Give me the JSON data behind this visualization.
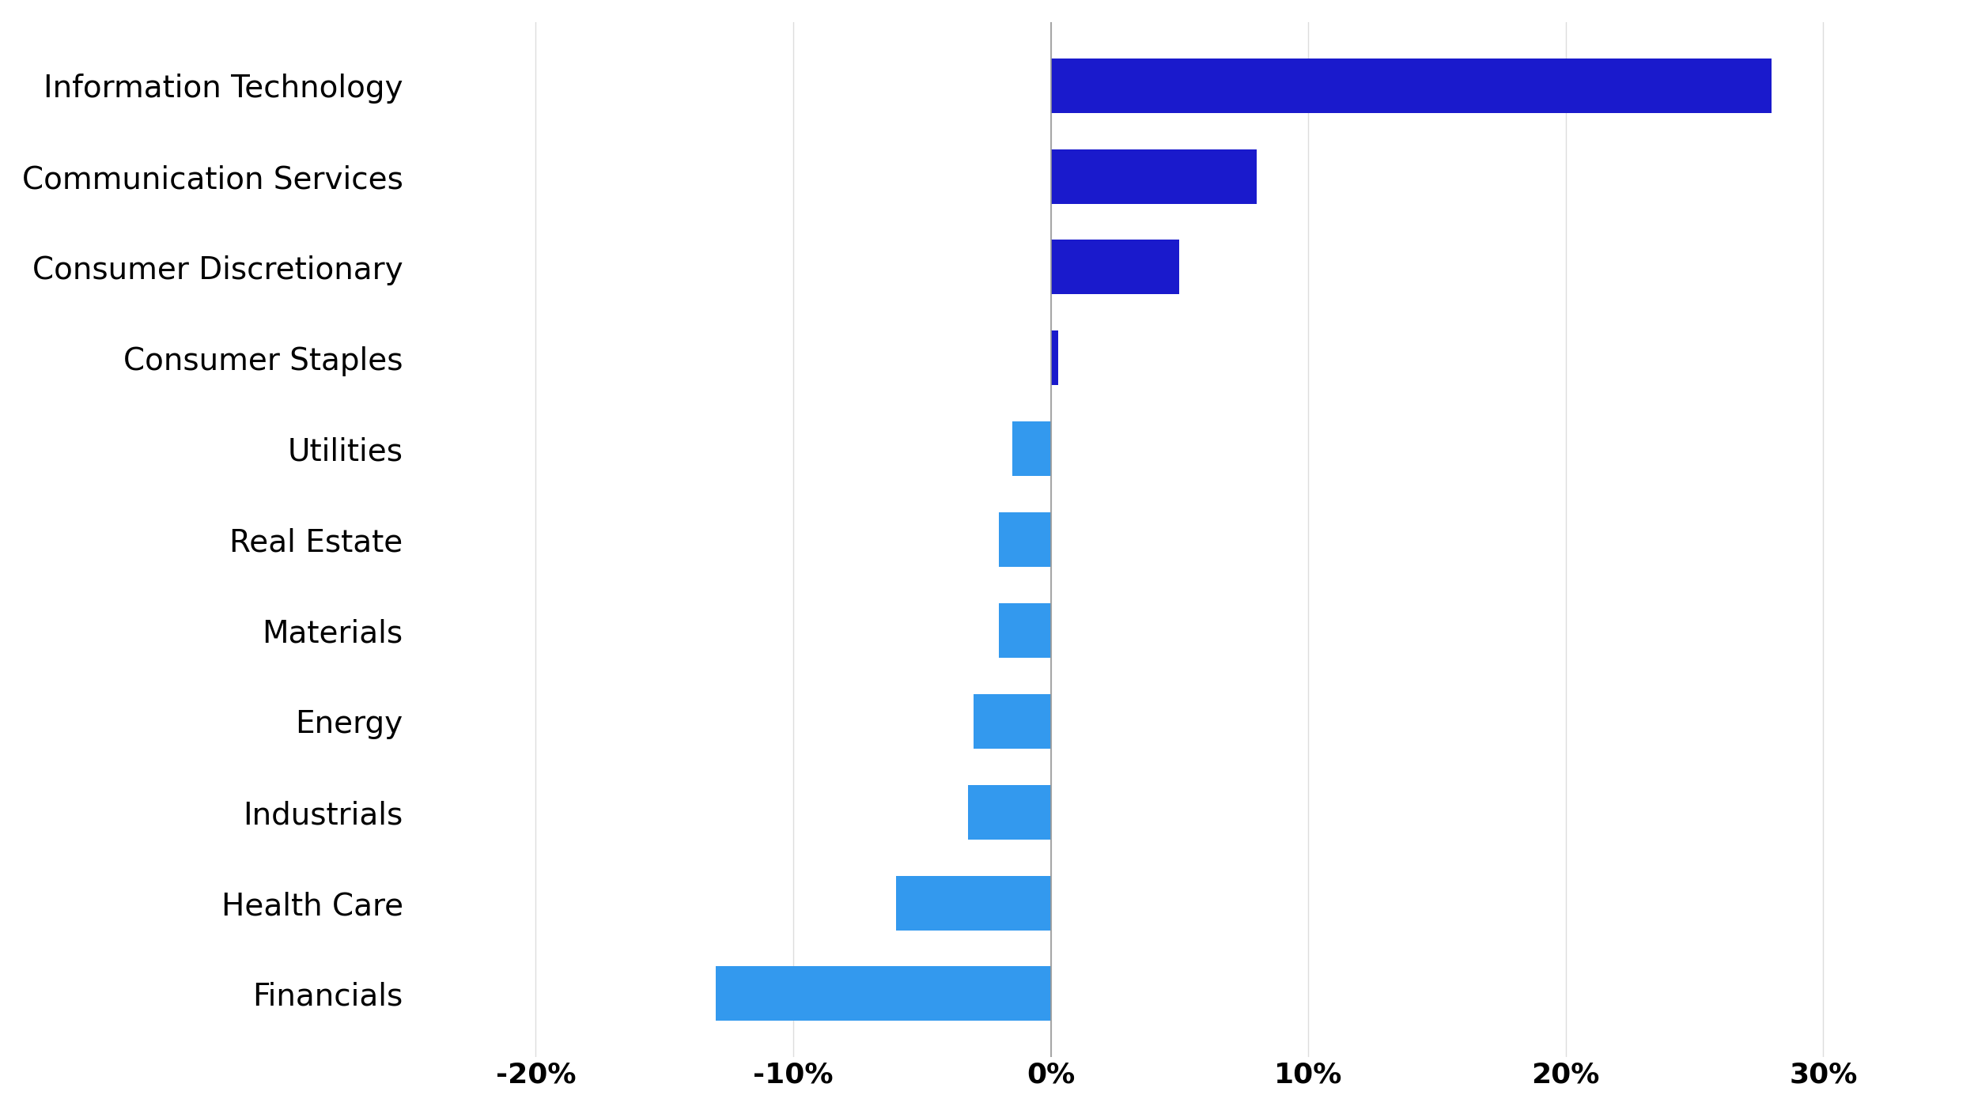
{
  "categories": [
    "Information Technology",
    "Communication Services",
    "Consumer Discretionary",
    "Consumer Staples",
    "Utilities",
    "Real Estate",
    "Materials",
    "Energy",
    "Industrials",
    "Health Care",
    "Financials"
  ],
  "values": [
    28,
    8,
    5,
    0.3,
    -1.5,
    -2.0,
    -2.0,
    -3.0,
    -3.2,
    -6.0,
    -13.0
  ],
  "bar_colors": [
    "#1a1acc",
    "#1a1acc",
    "#1a1acc",
    "#1a1acc",
    "#3399ee",
    "#3399ee",
    "#3399ee",
    "#3399ee",
    "#3399ee",
    "#3399ee",
    "#3399ee"
  ],
  "xlim": [
    -25,
    35
  ],
  "xticks": [
    -20,
    -10,
    0,
    10,
    20,
    30
  ],
  "xtick_labels": [
    "-20%",
    "-10%",
    "0%",
    "10%",
    "20%",
    "30%"
  ],
  "background_color": "#ffffff",
  "bar_height": 0.6,
  "label_fontsize": 28,
  "tick_fontsize": 26,
  "grid_color": "#dddddd"
}
